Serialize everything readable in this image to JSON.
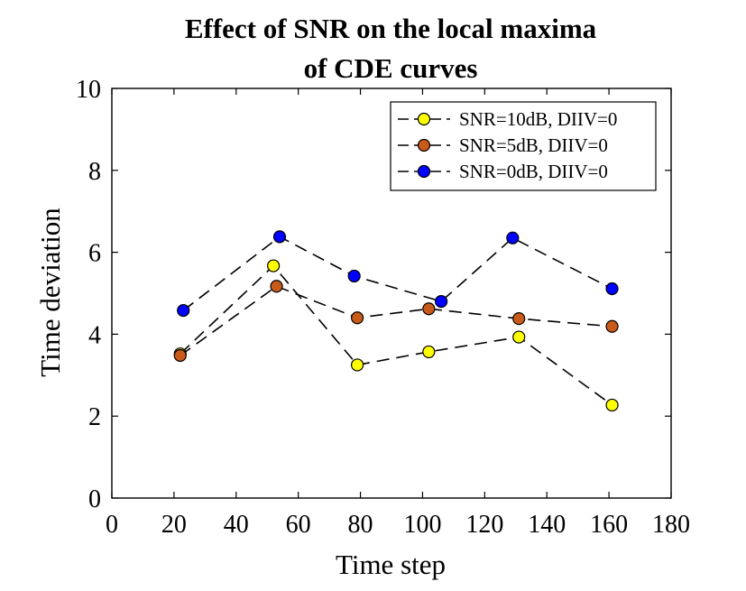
{
  "chart_data": {
    "type": "line",
    "title_lines": [
      "Effect of SNR on the local maxima",
      "of CDE curves"
    ],
    "xlabel": "Time step",
    "ylabel": "Time deviation",
    "xlim": [
      0,
      180
    ],
    "ylim": [
      0,
      10
    ],
    "xticks": [
      0,
      20,
      40,
      60,
      80,
      100,
      120,
      140,
      160,
      180
    ],
    "yticks": [
      0,
      2,
      4,
      6,
      8,
      10
    ],
    "grid": false,
    "legend_position": "top-right",
    "line_style": "dashed",
    "line_color": "#000000",
    "marker": "circle",
    "series": [
      {
        "name": "SNR=10dB, DIIV=0",
        "color": "#ffff00",
        "points": [
          [
            22,
            3.52
          ],
          [
            52,
            5.67
          ],
          [
            79,
            3.25
          ],
          [
            102,
            3.57
          ],
          [
            131,
            3.93
          ],
          [
            161,
            2.27
          ]
        ]
      },
      {
        "name": "SNR=5dB, DIIV=0",
        "color": "#c85a1a",
        "points": [
          [
            22,
            3.48
          ],
          [
            53,
            5.17
          ],
          [
            79,
            4.4
          ],
          [
            102,
            4.62
          ],
          [
            131,
            4.38
          ],
          [
            161,
            4.19
          ]
        ]
      },
      {
        "name": "SNR=0dB, DIIV=0",
        "color": "#0000ff",
        "points": [
          [
            23,
            4.58
          ],
          [
            54,
            6.38
          ],
          [
            78,
            5.42
          ],
          [
            106,
            4.8
          ],
          [
            129,
            6.35
          ],
          [
            161,
            5.11
          ]
        ]
      }
    ]
  }
}
